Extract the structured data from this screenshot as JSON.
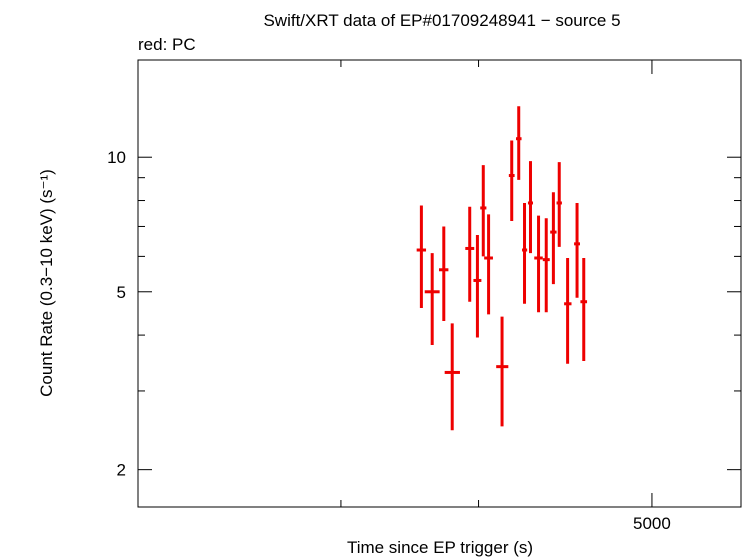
{
  "chart_data": {
    "type": "scatter",
    "title": "Swift/XRT data of EP#01709248941 − source 5",
    "subtitle": "red: PC",
    "xlabel": "Time since EP trigger (s)",
    "ylabel": "Count Rate (0.3−10 keV) (s⁻¹)",
    "xscale": "log",
    "yscale": "log",
    "xlim": [
      1100,
      6500
    ],
    "ylim": [
      1.65,
      16.5
    ],
    "x_ticks": [
      {
        "value": 5000,
        "label": "5000"
      }
    ],
    "x_minor_ticks": [
      2000,
      3000
    ],
    "y_ticks": [
      {
        "value": 2,
        "label": "2"
      },
      {
        "value": 5,
        "label": "5"
      },
      {
        "value": 10,
        "label": "10"
      }
    ],
    "y_minor_ticks": [
      3,
      4,
      6,
      7,
      8,
      9
    ],
    "grid": false,
    "series": [
      {
        "color": "#ee0000",
        "points": [
          {
            "x": 2535,
            "xlo": 2500,
            "xhi": 2570,
            "y": 6.2,
            "ylo": 4.6,
            "yhi": 7.8
          },
          {
            "x": 2617,
            "xlo": 2560,
            "xhi": 2675,
            "y": 5.0,
            "ylo": 3.8,
            "yhi": 6.1
          },
          {
            "x": 2708,
            "xlo": 2670,
            "xhi": 2745,
            "y": 5.6,
            "ylo": 4.3,
            "yhi": 7.0
          },
          {
            "x": 2776,
            "xlo": 2715,
            "xhi": 2840,
            "y": 3.3,
            "ylo": 2.45,
            "yhi": 4.25
          },
          {
            "x": 2923,
            "xlo": 2885,
            "xhi": 2962,
            "y": 6.25,
            "ylo": 4.75,
            "yhi": 7.75
          },
          {
            "x": 2990,
            "xlo": 2955,
            "xhi": 3025,
            "y": 5.3,
            "ylo": 3.95,
            "yhi": 6.7
          },
          {
            "x": 3042,
            "xlo": 3015,
            "xhi": 3070,
            "y": 7.7,
            "ylo": 6.0,
            "yhi": 9.6
          },
          {
            "x": 3090,
            "xlo": 3050,
            "xhi": 3130,
            "y": 5.95,
            "ylo": 4.45,
            "yhi": 7.45
          },
          {
            "x": 3215,
            "xlo": 3160,
            "xhi": 3275,
            "y": 3.4,
            "ylo": 2.5,
            "yhi": 4.4
          },
          {
            "x": 3308,
            "xlo": 3280,
            "xhi": 3336,
            "y": 9.1,
            "ylo": 7.2,
            "yhi": 10.9
          },
          {
            "x": 3377,
            "xlo": 3350,
            "xhi": 3405,
            "y": 11.0,
            "ylo": 8.9,
            "yhi": 13.0
          },
          {
            "x": 3435,
            "xlo": 3410,
            "xhi": 3462,
            "y": 6.2,
            "ylo": 4.7,
            "yhi": 7.9
          },
          {
            "x": 3496,
            "xlo": 3470,
            "xhi": 3522,
            "y": 7.9,
            "ylo": 6.1,
            "yhi": 9.8
          },
          {
            "x": 3580,
            "xlo": 3535,
            "xhi": 3625,
            "y": 5.95,
            "ylo": 4.5,
            "yhi": 7.4
          },
          {
            "x": 3662,
            "xlo": 3625,
            "xhi": 3700,
            "y": 5.9,
            "ylo": 4.5,
            "yhi": 7.3
          },
          {
            "x": 3740,
            "xlo": 3705,
            "xhi": 3775,
            "y": 6.8,
            "ylo": 5.2,
            "yhi": 8.35
          },
          {
            "x": 3805,
            "xlo": 3775,
            "xhi": 3835,
            "y": 7.9,
            "ylo": 6.3,
            "yhi": 9.75
          },
          {
            "x": 3900,
            "xlo": 3860,
            "xhi": 3945,
            "y": 4.7,
            "ylo": 3.45,
            "yhi": 5.95
          },
          {
            "x": 4010,
            "xlo": 3975,
            "xhi": 4045,
            "y": 6.4,
            "ylo": 4.85,
            "yhi": 7.9
          },
          {
            "x": 4090,
            "xlo": 4050,
            "xhi": 4130,
            "y": 4.75,
            "ylo": 3.5,
            "yhi": 5.95
          }
        ]
      }
    ]
  }
}
